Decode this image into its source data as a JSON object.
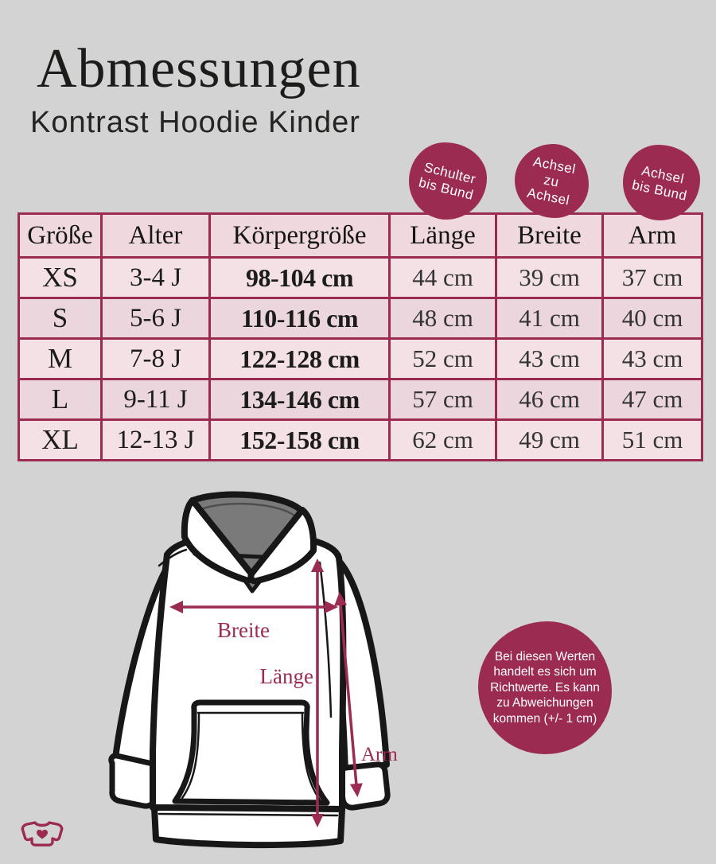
{
  "title": "Abmessungen",
  "subtitle": "Kontrast Hoodie Kinder",
  "badges": [
    {
      "id": "schulter-bis-bund",
      "lines": [
        "Schulter",
        "bis Bund"
      ]
    },
    {
      "id": "achsel-zu-achsel",
      "lines": [
        "Achsel",
        "zu",
        "Achsel"
      ]
    },
    {
      "id": "achsel-bis-bund",
      "lines": [
        "Achsel",
        "bis Bund"
      ]
    }
  ],
  "table": {
    "headers": [
      "Größe",
      "Alter",
      "Körpergröße",
      "Länge",
      "Breite",
      "Arm"
    ],
    "rows": [
      [
        "XS",
        "3-4 J",
        "98-104 cm",
        "44 cm",
        "39 cm",
        "37 cm"
      ],
      [
        "S",
        "5-6 J",
        "110-116 cm",
        "48 cm",
        "41 cm",
        "40 cm"
      ],
      [
        "M",
        "7-8 J",
        "122-128 cm",
        "52 cm",
        "43 cm",
        "43 cm"
      ],
      [
        "L",
        "9-11 J",
        "134-146 cm",
        "57 cm",
        "46 cm",
        "47 cm"
      ],
      [
        "XL",
        "12-13 J",
        "152-158 cm",
        "62 cm",
        "49 cm",
        "51 cm"
      ]
    ]
  },
  "diagram": {
    "breite_label": "Breite",
    "laenge_label": "Länge",
    "arm_label": "Arm"
  },
  "note": {
    "lines": [
      "Bei diesen Werten",
      "handelt es sich um",
      "Richtwerte. Es kann",
      "zu Abweichungen",
      "kommen (+/- 1 cm)"
    ]
  },
  "colors": {
    "accent_berry": "#9c2b52",
    "header_pink": "#efd9df",
    "row_pink_light": "#f3e1e6",
    "row_pink_dark": "#ecd6dd",
    "background_gray": "#d3d3d3",
    "hood_gray": "#7a7a7a",
    "outline_black": "#171717"
  }
}
